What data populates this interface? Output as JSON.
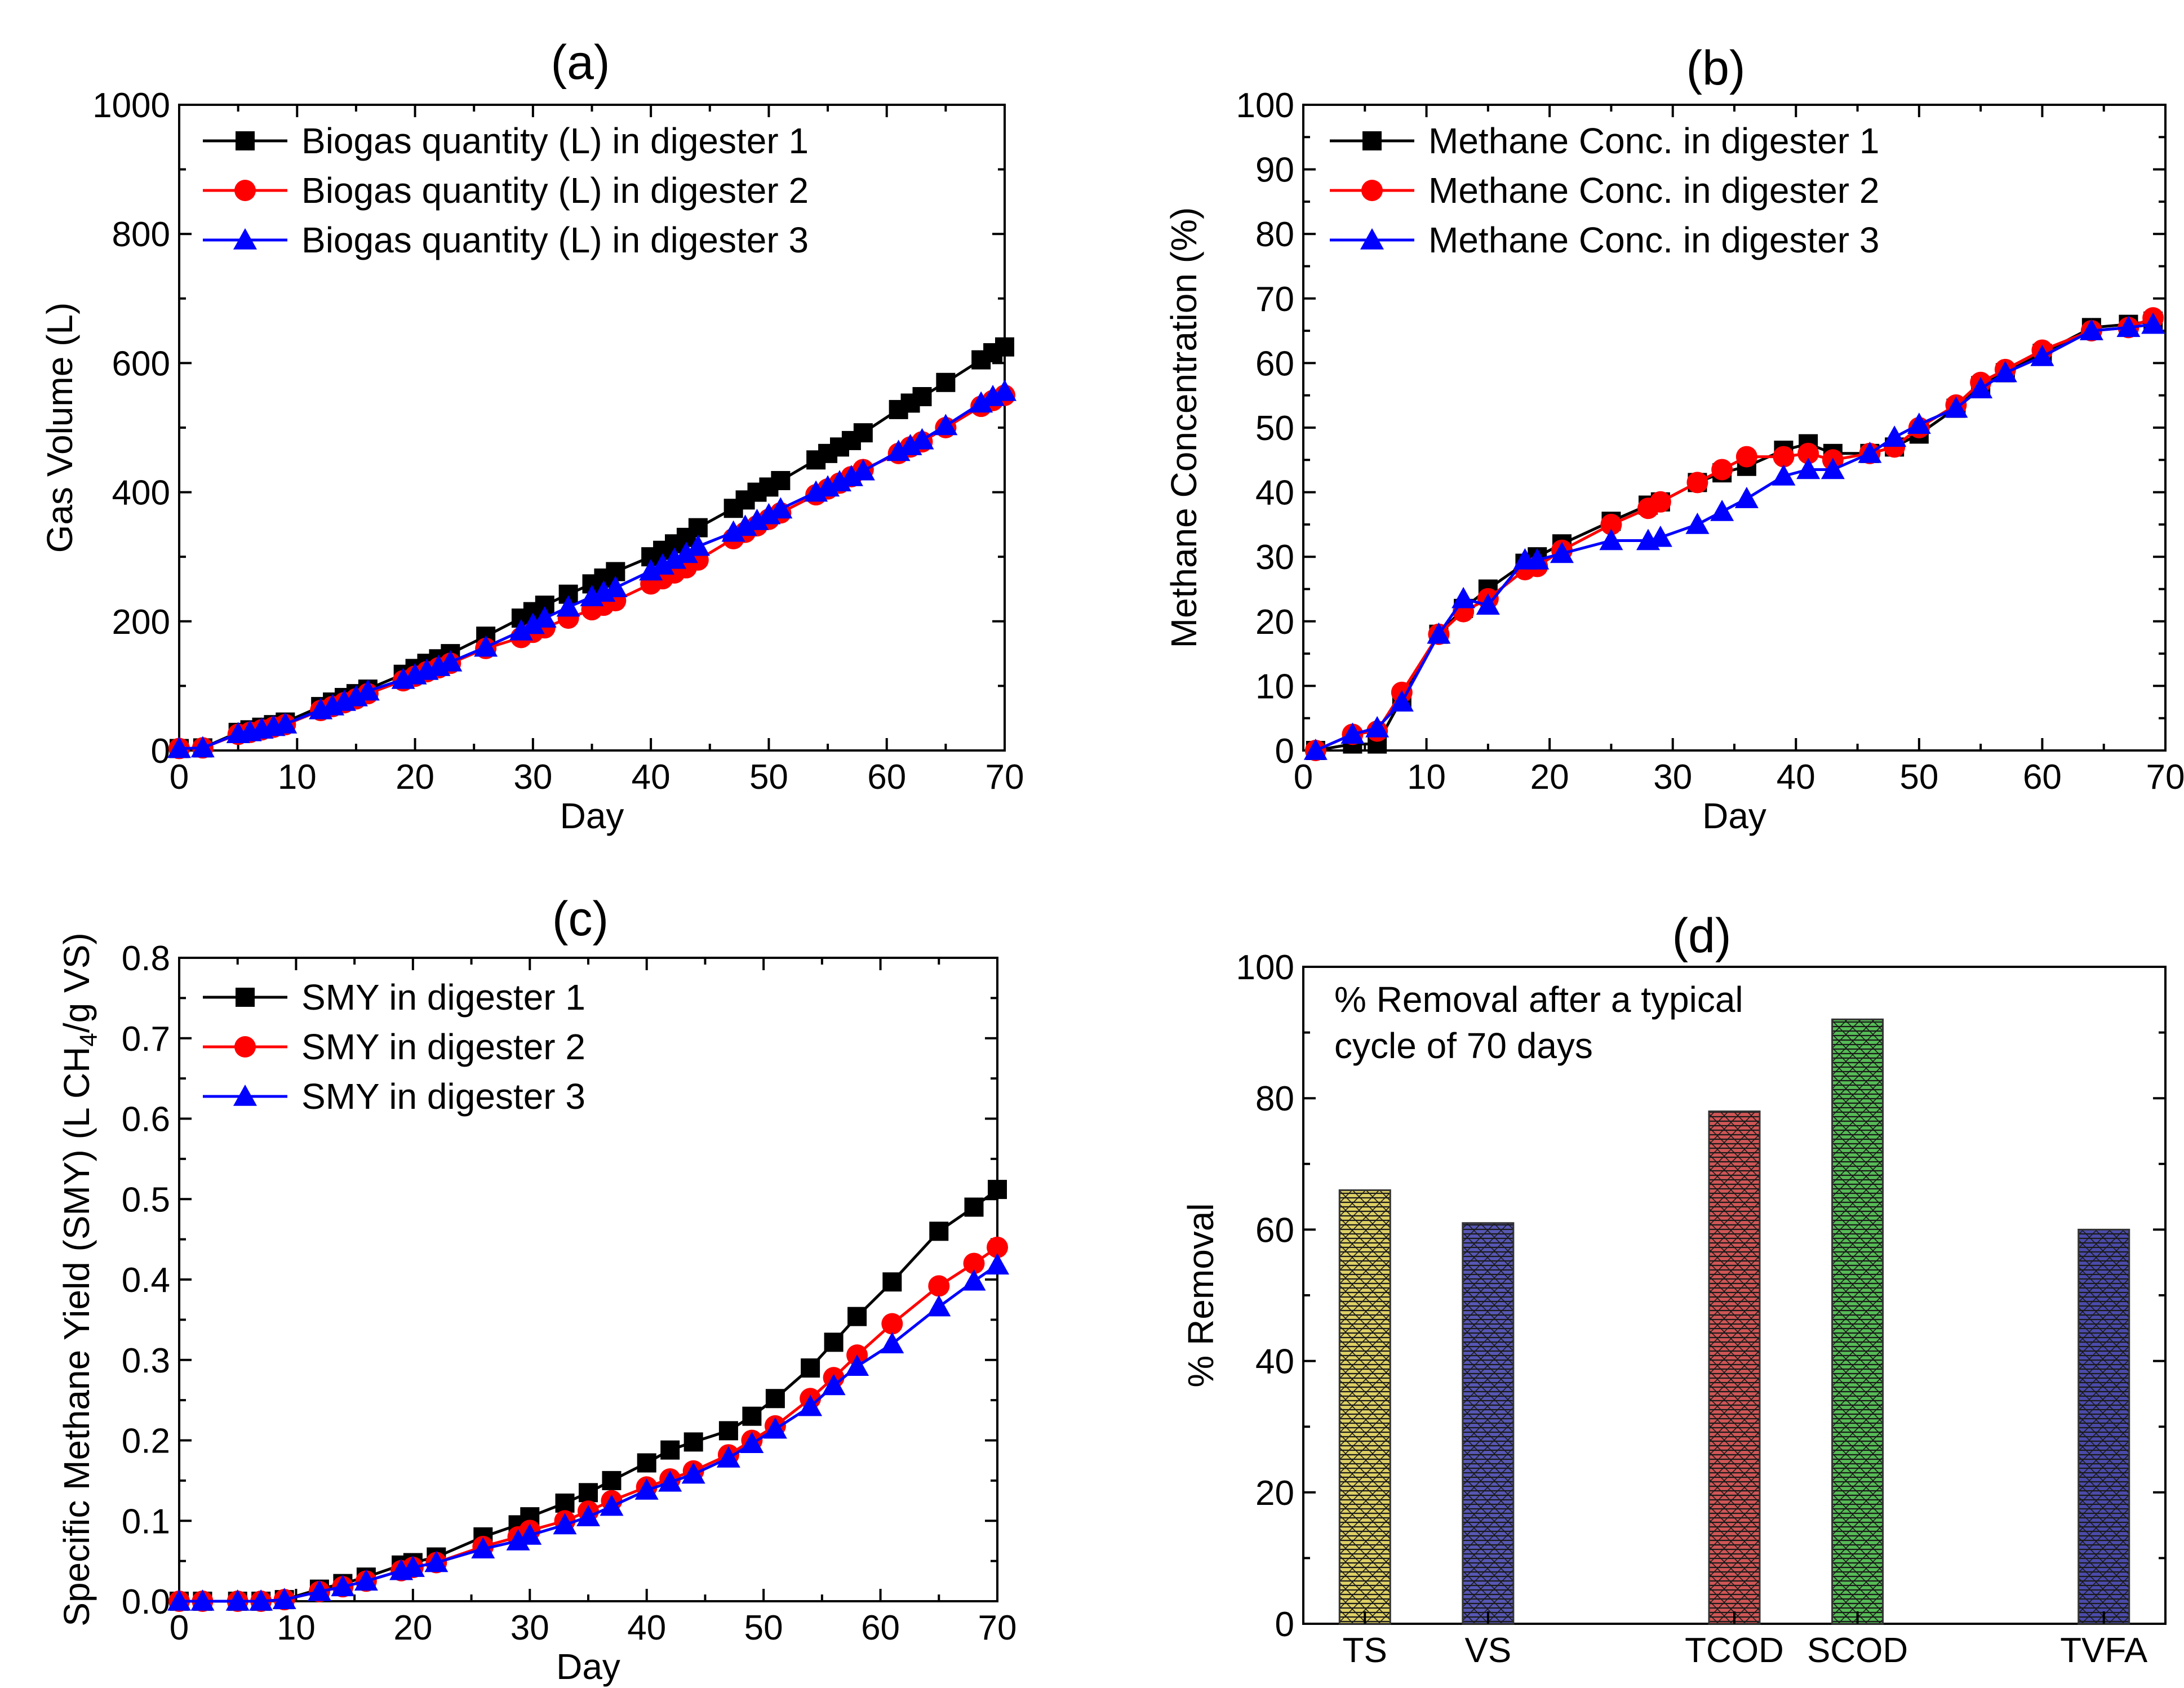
{
  "chart_data": [
    {
      "id": "a",
      "type": "line",
      "panel_label": "(a)",
      "xlabel": "Day",
      "ylabel": "Gas Volume (L)",
      "xlim": [
        0,
        70
      ],
      "ylim": [
        0,
        1000
      ],
      "xticks": [
        0,
        10,
        20,
        30,
        40,
        50,
        60,
        70
      ],
      "yticks": [
        0,
        200,
        400,
        600,
        800,
        1000
      ],
      "grid": false,
      "legend": "top-left",
      "series": [
        {
          "name": "Biogas quantity (L) in digester 1",
          "color": "#000000",
          "marker": "square",
          "x": [
            0,
            2,
            5,
            6,
            7,
            8,
            9,
            12,
            13,
            14,
            15,
            16,
            19,
            20,
            21,
            22,
            23,
            26,
            29,
            30,
            31,
            33,
            35,
            36,
            37,
            40,
            41,
            42,
            43,
            44,
            47,
            48,
            49,
            50,
            51,
            54,
            55,
            56,
            57,
            58,
            61,
            62,
            63,
            65,
            68,
            69,
            70
          ],
          "y": [
            3,
            4,
            28,
            32,
            36,
            40,
            44,
            68,
            75,
            82,
            88,
            95,
            118,
            127,
            135,
            142,
            150,
            177,
            205,
            215,
            225,
            242,
            258,
            267,
            277,
            300,
            310,
            320,
            330,
            345,
            375,
            388,
            400,
            408,
            418,
            450,
            460,
            470,
            480,
            492,
            528,
            538,
            548,
            570,
            605,
            616,
            625
          ]
        },
        {
          "name": "Biogas quantity (L) in digester 2",
          "color": "#ff0000",
          "marker": "circle",
          "x": [
            0,
            2,
            5,
            6,
            7,
            8,
            9,
            12,
            13,
            14,
            15,
            16,
            19,
            20,
            21,
            22,
            23,
            26,
            29,
            30,
            31,
            33,
            35,
            36,
            37,
            40,
            41,
            42,
            43,
            44,
            47,
            48,
            49,
            50,
            51,
            54,
            55,
            56,
            57,
            58,
            61,
            62,
            63,
            65,
            68,
            69,
            70
          ],
          "y": [
            3,
            4,
            25,
            28,
            32,
            36,
            40,
            62,
            68,
            74,
            80,
            88,
            108,
            115,
            122,
            128,
            135,
            158,
            175,
            183,
            190,
            205,
            218,
            225,
            232,
            258,
            266,
            275,
            283,
            295,
            328,
            338,
            348,
            358,
            368,
            396,
            405,
            414,
            424,
            435,
            460,
            470,
            478,
            500,
            533,
            542,
            550
          ]
        },
        {
          "name": "Biogas quantity (L) in digester 3",
          "color": "#0000ff",
          "marker": "triangle",
          "x": [
            0,
            2,
            5,
            6,
            7,
            8,
            9,
            12,
            13,
            14,
            15,
            16,
            19,
            20,
            21,
            22,
            23,
            26,
            29,
            30,
            31,
            33,
            35,
            36,
            37,
            40,
            41,
            42,
            43,
            44,
            47,
            48,
            49,
            50,
            51,
            54,
            55,
            56,
            57,
            58,
            61,
            62,
            63,
            65,
            68,
            69,
            70
          ],
          "y": [
            3,
            4,
            26,
            29,
            33,
            37,
            41,
            63,
            69,
            76,
            83,
            92,
            110,
            117,
            124,
            130,
            137,
            160,
            185,
            195,
            205,
            222,
            238,
            245,
            252,
            278,
            287,
            296,
            305,
            316,
            338,
            347,
            356,
            365,
            374,
            400,
            408,
            416,
            424,
            433,
            463,
            472,
            481,
            503,
            538,
            548,
            556
          ]
        }
      ]
    },
    {
      "id": "b",
      "type": "line",
      "panel_label": "(b)",
      "xlabel": "Day",
      "ylabel": "Methane Concentration (%)",
      "xlim": [
        0,
        70
      ],
      "ylim": [
        0,
        100
      ],
      "xticks": [
        0,
        10,
        20,
        30,
        40,
        50,
        60,
        70
      ],
      "yticks": [
        0,
        10,
        20,
        30,
        40,
        50,
        60,
        70,
        80,
        90,
        100
      ],
      "grid": false,
      "legend": "top-left",
      "series": [
        {
          "name": "Methane Conc. in digester 1",
          "color": "#000000",
          "marker": "square",
          "x": [
            1,
            4,
            6,
            8,
            11,
            13,
            15,
            18,
            19,
            21,
            25,
            28,
            29,
            32,
            34,
            36,
            39,
            41,
            43,
            46,
            48,
            50,
            53,
            55,
            57,
            60,
            64,
            67,
            69
          ],
          "y": [
            0,
            1,
            1,
            8,
            18,
            22,
            25,
            29,
            30,
            32,
            35.5,
            38,
            38.5,
            41.5,
            43,
            44,
            46.5,
            47.5,
            46,
            46,
            47,
            49,
            53,
            56.5,
            58.5,
            61.5,
            65.5,
            66,
            66.5
          ]
        },
        {
          "name": "Methane Conc. in digester 2",
          "color": "#ff0000",
          "marker": "circle",
          "x": [
            1,
            4,
            6,
            8,
            11,
            13,
            15,
            18,
            19,
            21,
            25,
            28,
            29,
            32,
            34,
            36,
            39,
            41,
            43,
            46,
            48,
            50,
            53,
            55,
            57,
            60,
            64,
            67,
            69
          ],
          "y": [
            0,
            2.5,
            3,
            9,
            18,
            21.5,
            23.5,
            28,
            28.5,
            31,
            35,
            37.5,
            38.5,
            41.5,
            43.5,
            45.5,
            45.5,
            46,
            45,
            46,
            47,
            50,
            53.5,
            57,
            59,
            62,
            65,
            65.5,
            67
          ]
        },
        {
          "name": "Methane Conc. in digester 3",
          "color": "#0000ff",
          "marker": "triangle",
          "x": [
            1,
            4,
            6,
            8,
            11,
            13,
            15,
            18,
            19,
            21,
            25,
            28,
            29,
            32,
            34,
            36,
            39,
            41,
            43,
            46,
            48,
            50,
            53,
            55,
            57,
            60,
            64,
            67,
            69
          ],
          "y": [
            0,
            2.5,
            3.5,
            7.5,
            18,
            23.5,
            22.5,
            29.5,
            29.5,
            30.5,
            32.5,
            32.5,
            33,
            35,
            37,
            39,
            42.5,
            43.5,
            43.5,
            46,
            48.5,
            50.5,
            53,
            56,
            58.5,
            61,
            65,
            65.5,
            66
          ]
        }
      ]
    },
    {
      "id": "c",
      "type": "line",
      "panel_label": "(c)",
      "xlabel": "Day",
      "ylabel_parts": [
        "Specific Methane Yield (SMY) (L CH",
        "4",
        "/g VS)"
      ],
      "xlim": [
        0,
        70
      ],
      "ylim": [
        0,
        0.8
      ],
      "xticks": [
        0,
        10,
        20,
        30,
        40,
        50,
        60,
        70
      ],
      "yticks": [
        "0.0",
        "0.1",
        "0.2",
        "0.3",
        "0.4",
        "0.5",
        "0.6",
        "0.7",
        "0.8"
      ],
      "grid": false,
      "legend": "top-left",
      "series": [
        {
          "name": "SMY in digester 1",
          "color": "#000000",
          "marker": "square",
          "x": [
            0,
            2,
            5,
            7,
            9,
            12,
            14,
            16,
            19,
            20,
            22,
            26,
            29,
            30,
            33,
            35,
            37,
            40,
            42,
            44,
            47,
            49,
            51,
            54,
            56,
            58,
            61,
            65,
            68,
            70
          ],
          "y": [
            0,
            0,
            0,
            0,
            0.002,
            0.015,
            0.022,
            0.03,
            0.045,
            0.048,
            0.055,
            0.08,
            0.095,
            0.105,
            0.122,
            0.135,
            0.15,
            0.172,
            0.188,
            0.198,
            0.212,
            0.23,
            0.252,
            0.29,
            0.322,
            0.354,
            0.397,
            0.46,
            0.49,
            0.512
          ]
        },
        {
          "name": "SMY in digester 2",
          "color": "#ff0000",
          "marker": "circle",
          "x": [
            0,
            2,
            5,
            7,
            9,
            12,
            14,
            16,
            19,
            20,
            22,
            26,
            29,
            30,
            33,
            35,
            37,
            40,
            42,
            44,
            47,
            49,
            51,
            54,
            56,
            58,
            61,
            65,
            68,
            70
          ],
          "y": [
            0,
            0,
            0,
            0,
            0.002,
            0.012,
            0.018,
            0.025,
            0.038,
            0.042,
            0.048,
            0.068,
            0.08,
            0.088,
            0.1,
            0.112,
            0.125,
            0.142,
            0.152,
            0.162,
            0.182,
            0.2,
            0.218,
            0.252,
            0.278,
            0.306,
            0.345,
            0.392,
            0.42,
            0.44
          ]
        },
        {
          "name": "SMY in digester 3",
          "color": "#0000ff",
          "marker": "triangle",
          "x": [
            0,
            2,
            5,
            7,
            9,
            12,
            14,
            16,
            19,
            20,
            22,
            26,
            29,
            30,
            33,
            35,
            37,
            40,
            42,
            44,
            47,
            49,
            51,
            54,
            56,
            58,
            61,
            65,
            68,
            70
          ],
          "y": [
            0,
            0,
            0,
            0,
            0.002,
            0.012,
            0.018,
            0.025,
            0.038,
            0.042,
            0.048,
            0.065,
            0.075,
            0.082,
            0.095,
            0.105,
            0.118,
            0.138,
            0.148,
            0.158,
            0.178,
            0.196,
            0.214,
            0.242,
            0.268,
            0.292,
            0.32,
            0.366,
            0.398,
            0.418
          ]
        }
      ]
    },
    {
      "id": "d",
      "type": "bar",
      "panel_label": "(d)",
      "xlabel": "",
      "ylabel": "% Removal",
      "ylim": [
        0,
        100
      ],
      "yticks": [
        0,
        20,
        40,
        60,
        80,
        100
      ],
      "grid": false,
      "annotation_lines": [
        "% Removal after a typical",
        "cycle of 70 days"
      ],
      "categories": [
        "TS",
        "VS",
        "TCOD",
        "SCOD",
        "TVFA"
      ],
      "category_positions": [
        1,
        2,
        4,
        5,
        7
      ],
      "xlim": [
        0.5,
        7.5
      ],
      "values": [
        66,
        61,
        78,
        92,
        60
      ],
      "colors": [
        "#d8c84a",
        "#3a3aa8",
        "#c83838",
        "#38b038",
        "#2c2c9c"
      ]
    }
  ]
}
